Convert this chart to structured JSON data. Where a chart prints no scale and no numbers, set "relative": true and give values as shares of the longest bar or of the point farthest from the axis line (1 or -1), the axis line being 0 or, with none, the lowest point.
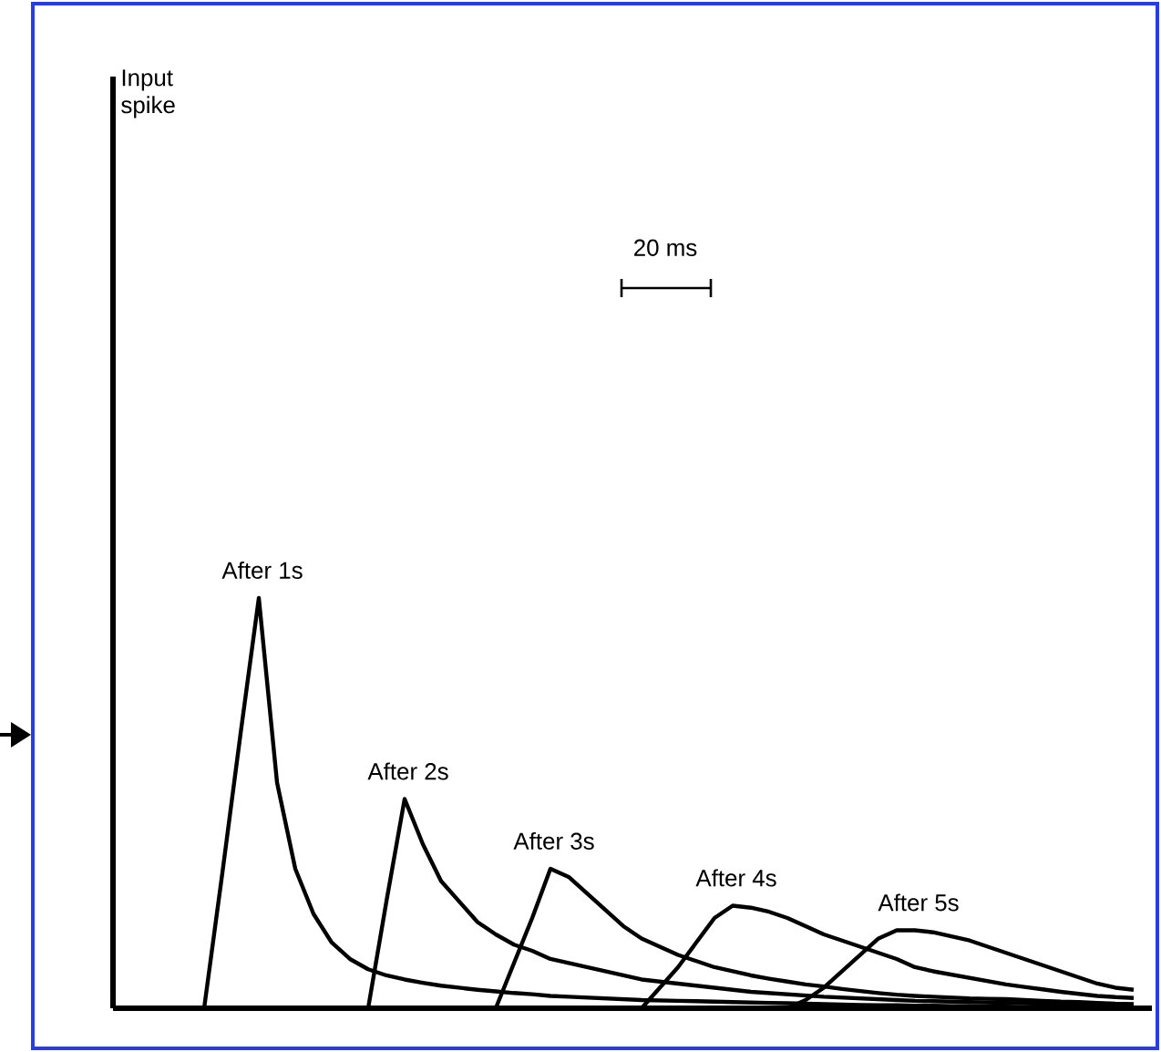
{
  "chart_data": {
    "type": "line",
    "relative": true,
    "annotations": [
      "Input spike",
      "20 ms"
    ],
    "marker": "none",
    "line_style": "solid",
    "categories": [
      null,
      null,
      null,
      null,
      null,
      null,
      null,
      null,
      null,
      null,
      null,
      null,
      null,
      null,
      null,
      null,
      null,
      null,
      null,
      null,
      null,
      null,
      null,
      null,
      null,
      null,
      null,
      null,
      null,
      null,
      null,
      null,
      null,
      null,
      null,
      null,
      null,
      null,
      null,
      null,
      null,
      null,
      null,
      null,
      null,
      null,
      null,
      null,
      null,
      null,
      null,
      null,
      null,
      null,
      null,
      null,
      null
    ],
    "series": [
      {
        "name": "After 1s",
        "color": "#000000",
        "values": [
          null,
          null,
          null,
          null,
          null,
          0,
          0.33,
          0.67,
          1.0,
          0.55,
          0.34,
          0.23,
          0.16,
          0.12,
          0.095,
          0.08,
          0.07,
          0.062,
          0.055,
          0.05,
          0.045,
          0.041,
          0.037,
          0.034,
          0.03,
          0.028,
          0.026,
          0.024,
          0.022,
          0.02,
          0.019,
          0.018,
          0.017,
          0.016,
          0.015,
          0.014,
          0.013,
          0.012,
          0.011,
          0.01,
          0.009,
          0.008,
          0.007,
          0.007,
          0.006,
          0.006,
          0.005,
          0.005,
          0.004,
          0.004,
          0.003,
          0.003,
          0.002,
          0.001,
          0,
          null,
          null
        ]
      },
      {
        "name": "After 2s",
        "color": "#000000",
        "values": [
          null,
          null,
          null,
          null,
          null,
          null,
          null,
          null,
          null,
          null,
          null,
          null,
          null,
          null,
          0,
          0.26,
          0.51,
          0.4,
          0.31,
          0.26,
          0.21,
          0.18,
          0.155,
          0.14,
          0.12,
          0.11,
          0.1,
          0.09,
          0.08,
          0.07,
          0.065,
          0.06,
          0.055,
          0.05,
          0.045,
          0.04,
          0.037,
          0.034,
          0.031,
          0.028,
          0.026,
          0.024,
          0.022,
          0.02,
          0.018,
          0.017,
          0.016,
          0.015,
          0.014,
          0.013,
          0.012,
          0.011,
          0.01,
          0.009,
          0.008,
          0.006,
          null
        ]
      },
      {
        "name": "After 3s",
        "color": "#000000",
        "values": [
          null,
          null,
          null,
          null,
          null,
          null,
          null,
          null,
          null,
          null,
          null,
          null,
          null,
          null,
          null,
          null,
          null,
          null,
          null,
          null,
          null,
          0,
          0.11,
          0.22,
          0.34,
          0.32,
          0.28,
          0.24,
          0.2,
          0.17,
          0.15,
          0.13,
          0.115,
          0.1,
          0.09,
          0.08,
          0.072,
          0.065,
          0.058,
          0.053,
          0.047,
          0.042,
          0.037,
          0.033,
          0.03,
          0.028,
          0.026,
          0.024,
          0.023,
          0.022,
          0.02,
          0.018,
          0.016,
          0.015,
          0.013,
          0.011,
          0.01
        ]
      },
      {
        "name": "After 4s",
        "color": "#000000",
        "values": [
          null,
          null,
          null,
          null,
          null,
          null,
          null,
          null,
          null,
          null,
          null,
          null,
          null,
          null,
          null,
          null,
          null,
          null,
          null,
          null,
          null,
          null,
          null,
          null,
          null,
          null,
          null,
          null,
          null,
          0,
          0.05,
          0.1,
          0.16,
          0.22,
          0.25,
          0.245,
          0.235,
          0.22,
          0.2,
          0.18,
          0.165,
          0.15,
          0.135,
          0.12,
          0.1,
          0.09,
          0.082,
          0.074,
          0.066,
          0.058,
          0.052,
          0.046,
          0.04,
          0.035,
          0.03,
          0.027,
          0.025
        ]
      },
      {
        "name": "After 5s",
        "color": "#000000",
        "values": [
          null,
          null,
          null,
          null,
          null,
          null,
          null,
          null,
          null,
          null,
          null,
          null,
          null,
          null,
          null,
          null,
          null,
          null,
          null,
          null,
          null,
          null,
          null,
          null,
          null,
          null,
          null,
          null,
          null,
          null,
          null,
          null,
          null,
          null,
          null,
          null,
          null,
          0,
          0.02,
          0.05,
          0.09,
          0.13,
          0.17,
          0.19,
          0.19,
          0.185,
          0.175,
          0.165,
          0.15,
          0.135,
          0.12,
          0.105,
          0.09,
          0.075,
          0.06,
          0.05,
          0.045
        ]
      }
    ]
  }
}
